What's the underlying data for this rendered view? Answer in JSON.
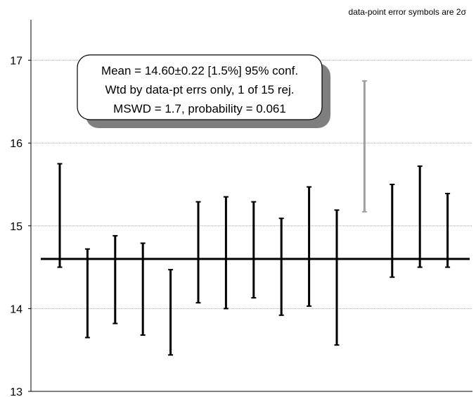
{
  "note": {
    "text": "data-point error symbols are 2",
    "sigma": "σ"
  },
  "stats_box": {
    "line1": "Mean = 14.60±0.22  [1.5%]  95% conf.",
    "line2": "Wtd by data-pt errs only, 1 of 15 rej.",
    "line3": "MSWD = 1.7, probability = 0.061"
  },
  "chart_data": {
    "type": "error-bar",
    "title": "",
    "xlabel": "",
    "ylabel": "",
    "ylim": [
      13,
      17.5
    ],
    "yticks": [
      13,
      14,
      15,
      16,
      17
    ],
    "grid": true,
    "mean": 14.6,
    "points": [
      {
        "index": 1,
        "low": 14.5,
        "high": 15.75,
        "rejected": false
      },
      {
        "index": 2,
        "low": 13.65,
        "high": 14.72,
        "rejected": false
      },
      {
        "index": 3,
        "low": 13.82,
        "high": 14.88,
        "rejected": false
      },
      {
        "index": 4,
        "low": 13.68,
        "high": 14.79,
        "rejected": false
      },
      {
        "index": 5,
        "low": 13.44,
        "high": 14.47,
        "rejected": false
      },
      {
        "index": 6,
        "low": 14.07,
        "high": 15.29,
        "rejected": false
      },
      {
        "index": 7,
        "low": 14.0,
        "high": 15.35,
        "rejected": false
      },
      {
        "index": 8,
        "low": 14.13,
        "high": 15.29,
        "rejected": false
      },
      {
        "index": 9,
        "low": 13.92,
        "high": 15.09,
        "rejected": false
      },
      {
        "index": 10,
        "low": 14.03,
        "high": 15.47,
        "rejected": false
      },
      {
        "index": 11,
        "low": 13.56,
        "high": 15.19,
        "rejected": false
      },
      {
        "index": 12,
        "low": 15.17,
        "high": 16.75,
        "rejected": true
      },
      {
        "index": 13,
        "low": 14.38,
        "high": 15.5,
        "rejected": false
      },
      {
        "index": 14,
        "low": 14.5,
        "high": 15.72,
        "rejected": false
      },
      {
        "index": 15,
        "low": 14.5,
        "high": 15.39,
        "rejected": false
      }
    ],
    "colors": {
      "accepted": "#000000",
      "rejected": "#a0a0a0",
      "grid": "#a8a8a8",
      "mean_line": "#000000"
    }
  }
}
